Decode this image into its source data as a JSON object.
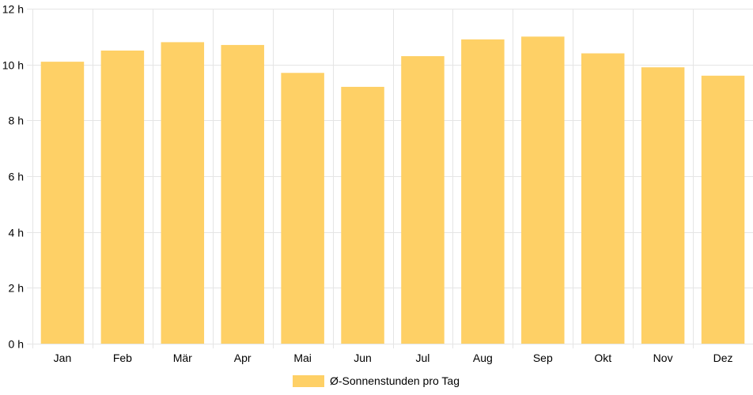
{
  "chart_data": {
    "type": "bar",
    "categories": [
      "Jan",
      "Feb",
      "Mär",
      "Apr",
      "Mai",
      "Jun",
      "Jul",
      "Aug",
      "Sep",
      "Okt",
      "Nov",
      "Dez"
    ],
    "series": [
      {
        "name": "Ø-Sonnenstunden pro Tag",
        "values": [
          10.1,
          10.5,
          10.8,
          10.7,
          9.7,
          9.2,
          10.3,
          10.9,
          11.0,
          10.4,
          9.9,
          9.6
        ]
      }
    ],
    "yticks": [
      "0 h",
      "2 h",
      "4 h",
      "6 h",
      "8 h",
      "10 h",
      "12 h"
    ],
    "ylim": [
      0,
      12
    ],
    "grid": true,
    "legend_position": "bottom",
    "colors": {
      "bar": "#fed066",
      "grid": "#e5e5e5"
    }
  }
}
